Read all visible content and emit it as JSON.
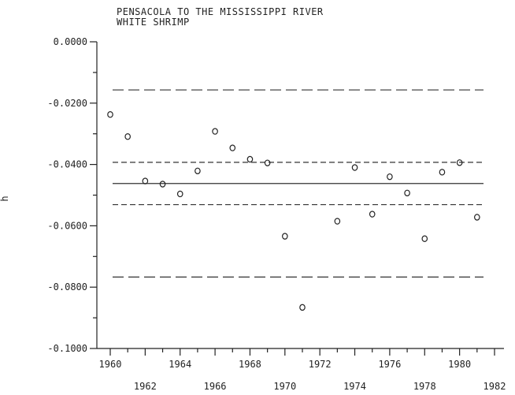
{
  "chart_data": {
    "type": "scatter",
    "title": "PENSACOLA TO THE MISSISSIPPI RIVER",
    "subtitle": "WHITE SHRIMP",
    "ylabel": "h",
    "xlabel": "",
    "xlim": [
      1960,
      1982
    ],
    "ylim": [
      -0.1,
      0.0
    ],
    "yticks": [
      0.0,
      -0.02,
      -0.04,
      -0.06,
      -0.08,
      -0.1
    ],
    "ytick_labels": [
      "0.0000",
      "-0.0200",
      "-0.0400",
      "-0.0600",
      "-0.0800",
      "-0.1000"
    ],
    "xticks_upper": [
      1960,
      1964,
      1968,
      1972,
      1976,
      1980
    ],
    "xticks_lower": [
      1962,
      1966,
      1970,
      1974,
      1978,
      1982
    ],
    "grid": false,
    "x": [
      1960,
      1961,
      1962,
      1963,
      1964,
      1965,
      1966,
      1967,
      1968,
      1969,
      1970,
      1971,
      1973,
      1974,
      1975,
      1976,
      1977,
      1978,
      1979,
      1980,
      1981
    ],
    "y": [
      -0.0237,
      -0.0309,
      -0.0454,
      -0.0464,
      -0.0496,
      -0.0421,
      -0.0292,
      -0.0346,
      -0.0383,
      -0.0395,
      -0.0634,
      -0.0866,
      -0.0585,
      -0.041,
      -0.0562,
      -0.044,
      -0.0493,
      -0.0642,
      -0.0425,
      -0.0394,
      -0.0572
    ],
    "reference_lines": [
      {
        "style": "solid",
        "y": -0.0462
      },
      {
        "style": "dashed",
        "y": -0.0393
      },
      {
        "style": "dashed",
        "y": -0.0531
      },
      {
        "style": "long-dashed",
        "y": -0.0157
      },
      {
        "style": "long-dashed",
        "y": -0.0767
      }
    ]
  }
}
